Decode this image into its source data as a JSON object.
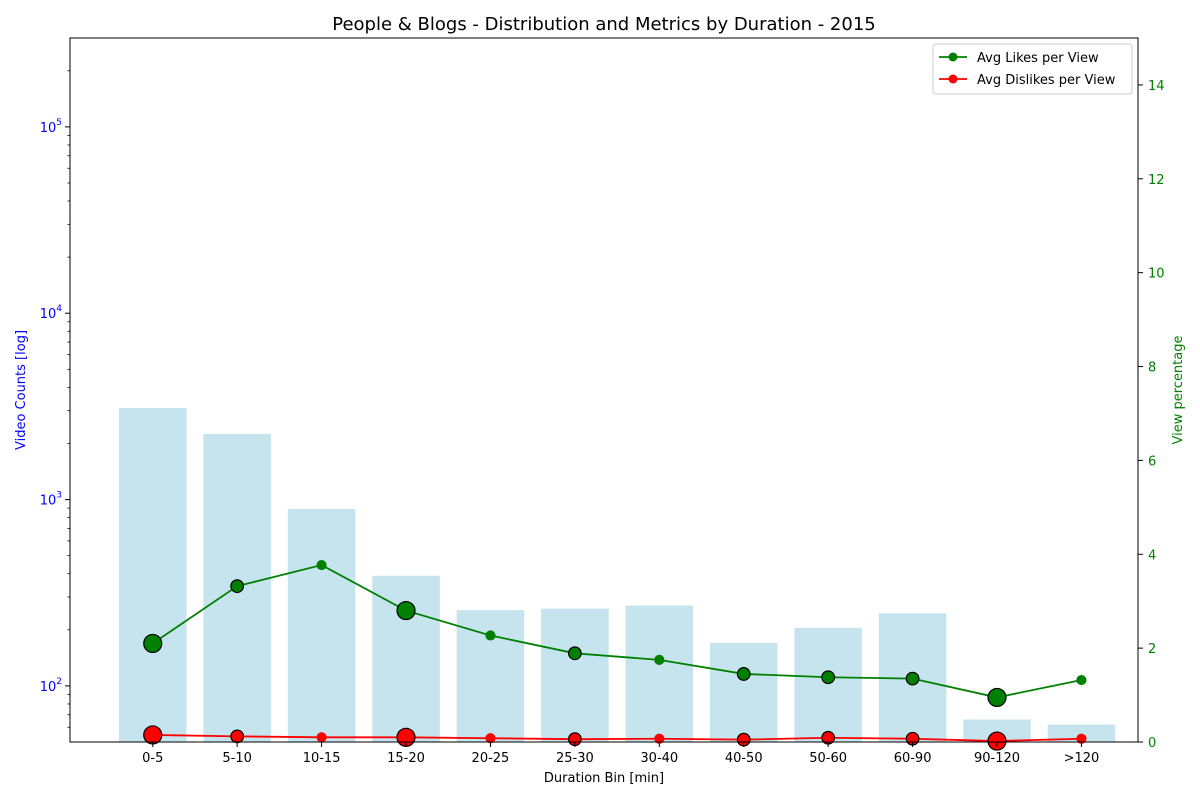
{
  "chart_data": {
    "type": "bar",
    "title": "People & Blogs - Distribution and Metrics by Duration - 2015",
    "xlabel": "Duration Bin [min]",
    "ylabel_left": "Video Counts [log]",
    "ylabel_right": "View percentage",
    "categories": [
      "0-5",
      "5-10",
      "10-15",
      "15-20",
      "20-25",
      "25-30",
      "30-40",
      "40-50",
      "50-60",
      "60-90",
      "90-120",
      ">120"
    ],
    "bar_series": {
      "values": [
        3100,
        2250,
        890,
        390,
        255,
        260,
        270,
        170,
        205,
        245,
        66,
        62
      ],
      "color": "#add8e6"
    },
    "left_axis": {
      "scale": "log",
      "ylim": [
        50,
        300000
      ],
      "ticks": [
        {
          "value": 100,
          "base": "10",
          "exp": "2"
        },
        {
          "value": 1000,
          "base": "10",
          "exp": "3"
        },
        {
          "value": 10000,
          "base": "10",
          "exp": "4"
        },
        {
          "value": 100000,
          "base": "10",
          "exp": "5"
        }
      ],
      "color": "#0000ff"
    },
    "right_axis": {
      "scale": "linear",
      "ylim": [
        0,
        15
      ],
      "ticks": [
        "0",
        "2",
        "4",
        "6",
        "8",
        "10",
        "12",
        "14"
      ],
      "color": "#008000"
    },
    "line_series": [
      {
        "name": "Avg Likes per View",
        "color": "#008000",
        "values": [
          2.1,
          3.32,
          3.77,
          2.8,
          2.27,
          1.89,
          1.75,
          1.45,
          1.38,
          1.35,
          0.95,
          1.32
        ],
        "marker_scale": [
          1.5,
          1.05,
          0.85,
          1.5,
          0.85,
          1.05,
          0.85,
          1.05,
          1.05,
          1.05,
          1.5,
          0.85
        ]
      },
      {
        "name": "Avg Dislikes per View",
        "color": "#ff0000",
        "values": [
          0.15,
          0.12,
          0.1,
          0.1,
          0.08,
          0.06,
          0.07,
          0.05,
          0.09,
          0.07,
          0.02,
          0.07
        ],
        "marker_scale": [
          1.5,
          1.05,
          0.85,
          1.5,
          0.85,
          1.05,
          0.85,
          1.05,
          1.05,
          1.05,
          1.5,
          0.85
        ]
      }
    ],
    "legend_position": "top-right",
    "grid": false
  }
}
